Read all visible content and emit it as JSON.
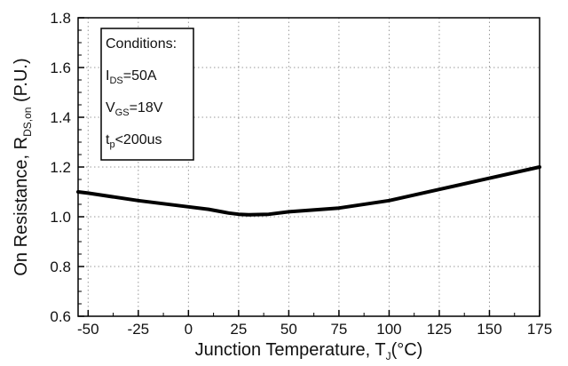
{
  "chart_data": {
    "type": "line",
    "title": "",
    "xlabel": {
      "main": "Junction Temperature, T",
      "sub": "J",
      "unit": "(°C)"
    },
    "ylabel": {
      "main": "On Resistance, R",
      "sub": "DS,on",
      "unit": " (P.U.)"
    },
    "xlim": [
      -55,
      175
    ],
    "ylim": [
      0.6,
      1.8
    ],
    "x_ticks": [
      -50,
      -25,
      0,
      25,
      50,
      75,
      100,
      125,
      150,
      175
    ],
    "x_tick_labels": [
      "-50",
      "-25",
      "0",
      "25",
      "50",
      "75",
      "100",
      "125",
      "150",
      "175"
    ],
    "y_ticks": [
      0.6,
      0.8,
      1.0,
      1.2,
      1.4,
      1.6,
      1.8
    ],
    "y_tick_labels": [
      "0.6",
      "0.8",
      "1.0",
      "1.2",
      "1.4",
      "1.6",
      "1.8"
    ],
    "grid": "dotted",
    "series": [
      {
        "x": [
          -55,
          -50,
          -25,
          0,
          10,
          20,
          25,
          30,
          40,
          50,
          75,
          100,
          125,
          150,
          175
        ],
        "y": [
          1.1,
          1.095,
          1.065,
          1.04,
          1.03,
          1.015,
          1.01,
          1.008,
          1.01,
          1.02,
          1.035,
          1.065,
          1.11,
          1.155,
          1.2
        ]
      }
    ],
    "annotation": {
      "lines": [
        {
          "main": "Conditions:",
          "sub": "",
          "rest": ""
        },
        {
          "main": "I",
          "sub": "DS",
          "rest": "=50A"
        },
        {
          "main": "V",
          "sub": "GS",
          "rest": "=18V"
        },
        {
          "main": "t",
          "sub": "p",
          "rest": "<200us"
        }
      ]
    }
  }
}
